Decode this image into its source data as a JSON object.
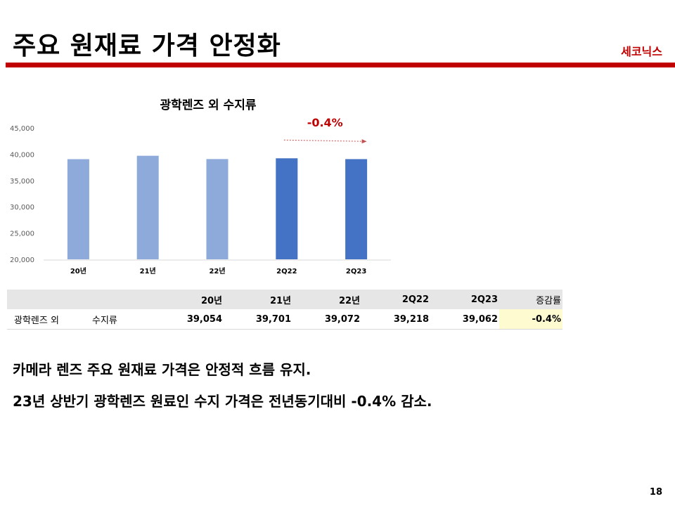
{
  "header": {
    "title": "주요 원재료 가격 안정화",
    "company": "세코닉스"
  },
  "chart_data": {
    "type": "bar",
    "title": "광학렌즈 외 수지류",
    "categories": [
      "20년",
      "21년",
      "22년",
      "2Q22",
      "2Q23"
    ],
    "values": [
      39054,
      39701,
      39072,
      39218,
      39062
    ],
    "ylim": [
      20000,
      45000
    ],
    "yticks": [
      "20,000",
      "25,000",
      "30,000",
      "35,000",
      "40,000",
      "45,000"
    ],
    "colors": [
      "#8eaadb",
      "#8eaadb",
      "#8eaadb",
      "#4472c4",
      "#4472c4"
    ],
    "grid": false,
    "annotation": "-0.4%",
    "annotation_color": "#c00000"
  },
  "table": {
    "headers": [
      "20년",
      "21년",
      "22년",
      "2Q22",
      "2Q23",
      "증감률"
    ],
    "row": {
      "label": "광학렌즈 외",
      "sublabel": "수지류",
      "values": [
        "39,054",
        "39,701",
        "39,072",
        "39,218",
        "39,062"
      ],
      "change": "-0.4%"
    }
  },
  "bullets": [
    "카메라 렌즈 주요 원재료 가격은 안정적 흐름 유지.",
    "23년 상반기 광학렌즈 원료인 수지 가격은 전년동기대비 -0.4% 감소."
  ],
  "page_number": "18"
}
